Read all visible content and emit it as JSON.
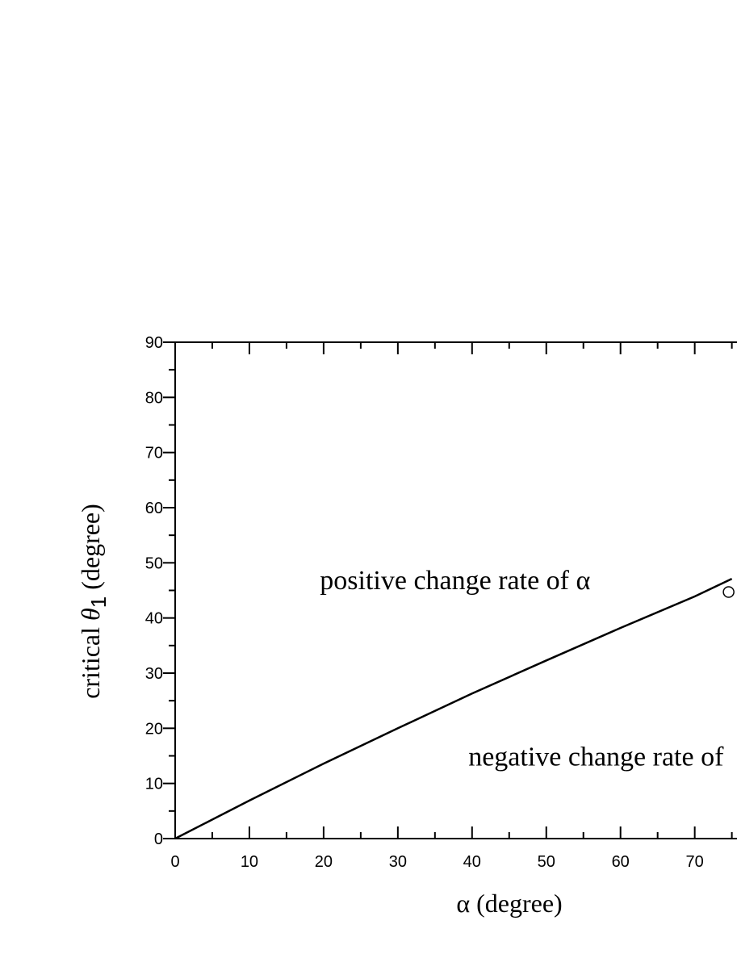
{
  "chart_data": {
    "type": "line",
    "xlabel": "α (degree)",
    "ylabel_prefix": "critical ",
    "ylabel_symbol": "θ",
    "ylabel_subscript": "1",
    "ylabel_suffix": " (degree)",
    "xlim": [
      0,
      75
    ],
    "ylim": [
      0,
      90
    ],
    "x_ticks": [
      0,
      10,
      20,
      30,
      40,
      50,
      60,
      70
    ],
    "y_ticks": [
      0,
      10,
      20,
      30,
      40,
      50,
      60,
      70,
      80,
      90
    ],
    "grid": false,
    "series": [
      {
        "style": "solid line",
        "x": [
          0,
          10,
          20,
          30,
          40,
          50,
          60,
          70,
          75
        ],
        "y": [
          0,
          6.9,
          13.6,
          20.0,
          26.3,
          32.3,
          38.2,
          43.9,
          47.1
        ]
      }
    ],
    "markers": [
      {
        "style": "open circle",
        "x": 75,
        "y": 45
      }
    ],
    "annotations": [
      {
        "text": "positive change rate of α",
        "x": 19.5,
        "y": 47
      },
      {
        "text": "negative change rate of",
        "x": 39.5,
        "y": 15
      }
    ]
  }
}
